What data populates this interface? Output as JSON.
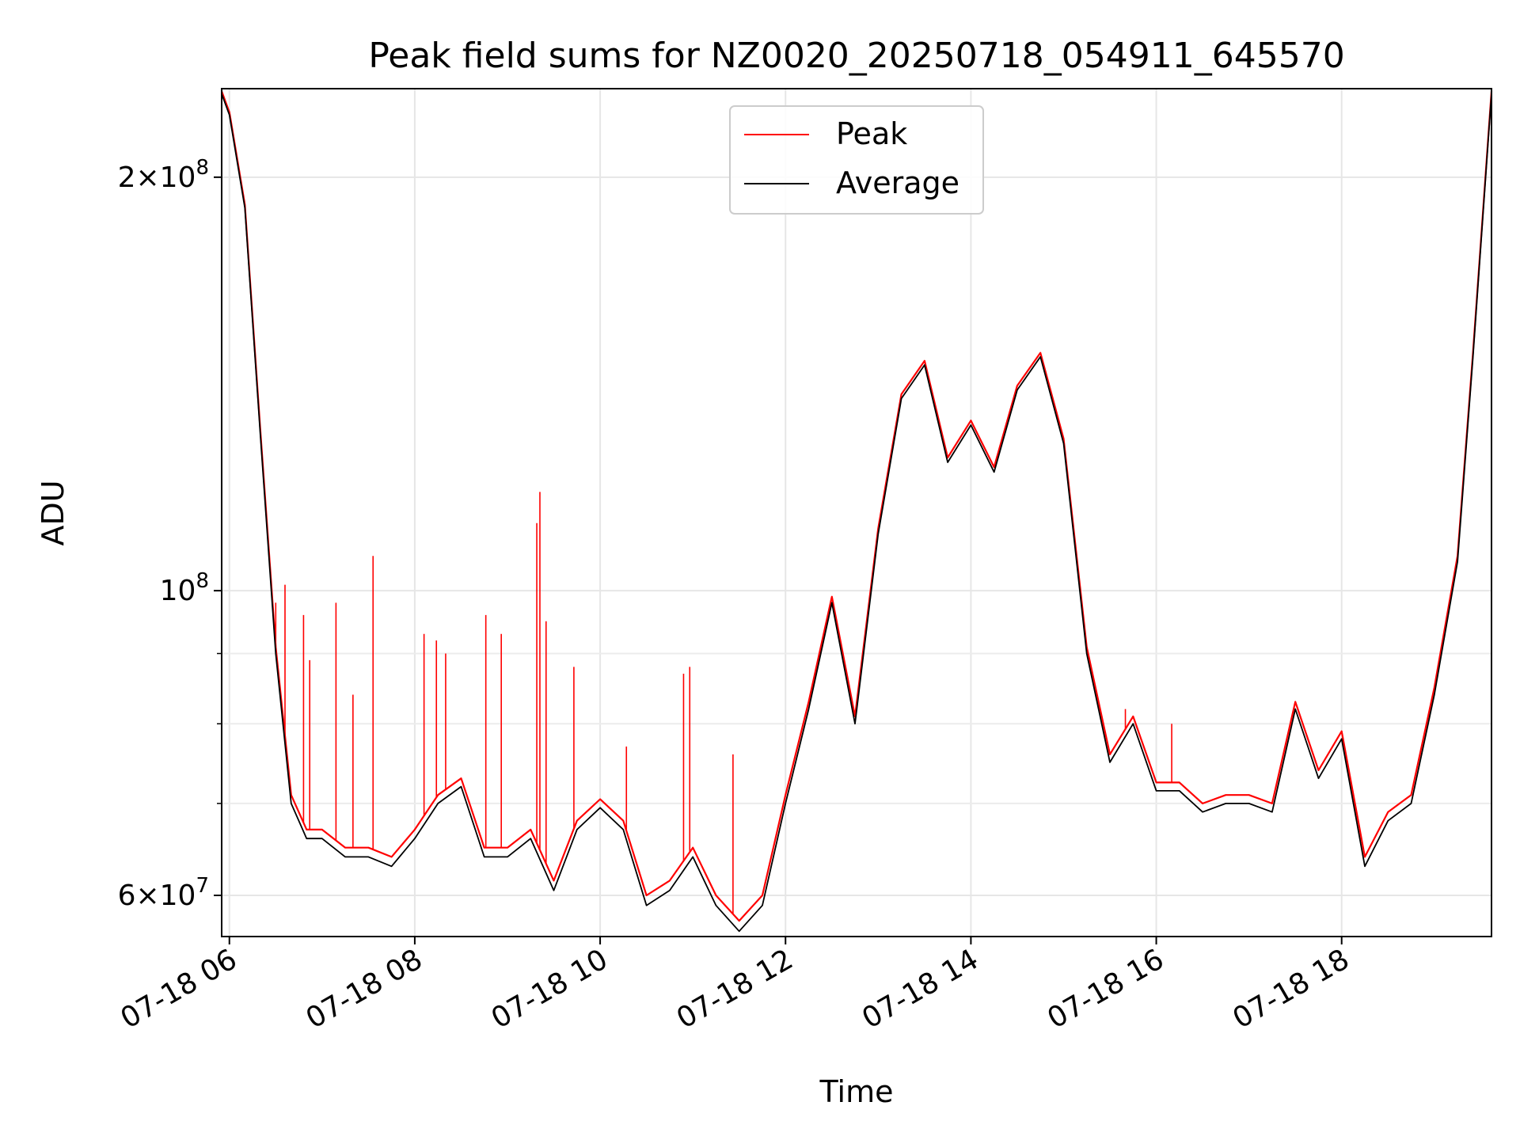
{
  "chart_data": {
    "type": "line",
    "title": "Peak field sums for NZ0020_20250718_054911_645570",
    "xlabel": "Time",
    "ylabel": "ADU",
    "yscale": "log",
    "ylim": [
      56000000,
      232000000
    ],
    "xlim": [
      "2025-07-18 05:55",
      "2025-07-18 19:37"
    ],
    "grid": true,
    "legend_position": "top-center",
    "x_ticks": [
      {
        "label": "07-18 06",
        "t": "2025-07-18 06:00"
      },
      {
        "label": "07-18 08",
        "t": "2025-07-18 08:00"
      },
      {
        "label": "07-18 10",
        "t": "2025-07-18 10:00"
      },
      {
        "label": "07-18 12",
        "t": "2025-07-18 12:00"
      },
      {
        "label": "07-18 14",
        "t": "2025-07-18 14:00"
      },
      {
        "label": "07-18 16",
        "t": "2025-07-18 16:00"
      },
      {
        "label": "07-18 18",
        "t": "2025-07-18 18:00"
      }
    ],
    "y_ticks": [
      {
        "label": "2×10⁸",
        "mant": "2",
        "exp": "8",
        "value": 200000000
      },
      {
        "label": "10⁸",
        "mant": "",
        "exp": "8",
        "value": 100000000
      },
      {
        "label": "6×10⁷",
        "mant": "6",
        "exp": "7",
        "value": 60000000
      }
    ],
    "y_minor_ticks": [
      70000000,
      80000000,
      90000000
    ],
    "x": [
      "2025-07-18 05:55",
      "2025-07-18 06:00",
      "2025-07-18 06:10",
      "2025-07-18 06:20",
      "2025-07-18 06:30",
      "2025-07-18 06:40",
      "2025-07-18 06:50",
      "2025-07-18 07:00",
      "2025-07-18 07:15",
      "2025-07-18 07:30",
      "2025-07-18 07:45",
      "2025-07-18 08:00",
      "2025-07-18 08:15",
      "2025-07-18 08:30",
      "2025-07-18 08:45",
      "2025-07-18 09:00",
      "2025-07-18 09:15",
      "2025-07-18 09:30",
      "2025-07-18 09:45",
      "2025-07-18 10:00",
      "2025-07-18 10:15",
      "2025-07-18 10:30",
      "2025-07-18 10:45",
      "2025-07-18 11:00",
      "2025-07-18 11:15",
      "2025-07-18 11:30",
      "2025-07-18 11:45",
      "2025-07-18 12:00",
      "2025-07-18 12:15",
      "2025-07-18 12:30",
      "2025-07-18 12:45",
      "2025-07-18 13:00",
      "2025-07-18 13:15",
      "2025-07-18 13:30",
      "2025-07-18 13:45",
      "2025-07-18 14:00",
      "2025-07-18 14:15",
      "2025-07-18 14:30",
      "2025-07-18 14:45",
      "2025-07-18 15:00",
      "2025-07-18 15:15",
      "2025-07-18 15:30",
      "2025-07-18 15:45",
      "2025-07-18 16:00",
      "2025-07-18 16:15",
      "2025-07-18 16:30",
      "2025-07-18 16:45",
      "2025-07-18 17:00",
      "2025-07-18 17:15",
      "2025-07-18 17:30",
      "2025-07-18 17:45",
      "2025-07-18 18:00",
      "2025-07-18 18:15",
      "2025-07-18 18:30",
      "2025-07-18 18:45",
      "2025-07-18 19:00",
      "2025-07-18 19:15",
      "2025-07-18 19:25",
      "2025-07-18 19:37"
    ],
    "series": [
      {
        "name": "Average",
        "color": "#000000",
        "values": [
          230000000,
          222000000,
          190000000,
          130000000,
          90000000,
          70000000,
          66000000,
          66000000,
          64000000,
          64000000,
          63000000,
          66000000,
          70000000,
          72000000,
          64000000,
          64000000,
          66000000,
          60500000,
          67000000,
          69500000,
          67000000,
          59000000,
          60500000,
          64000000,
          59000000,
          56500000,
          59000000,
          70000000,
          82000000,
          98000000,
          80000000,
          110000000,
          138000000,
          146000000,
          124000000,
          132000000,
          122000000,
          140000000,
          148000000,
          128000000,
          90000000,
          75000000,
          80000000,
          71500000,
          71500000,
          69000000,
          70000000,
          70000000,
          69000000,
          82000000,
          73000000,
          78000000,
          63000000,
          68000000,
          70000000,
          84000000,
          105000000,
          148000000,
          230000000
        ]
      },
      {
        "name": "Peak",
        "color": "#ff0000",
        "values": [
          231000000,
          223000000,
          191000000,
          131000000,
          91000000,
          71000000,
          67000000,
          67000000,
          65000000,
          65000000,
          64000000,
          67000000,
          71000000,
          73000000,
          65000000,
          65000000,
          67000000,
          61500000,
          68000000,
          70500000,
          68000000,
          60000000,
          61500000,
          65000000,
          60000000,
          57500000,
          60000000,
          71000000,
          83000000,
          99000000,
          81000000,
          111000000,
          139000000,
          147000000,
          125000000,
          133000000,
          123000000,
          141000000,
          149000000,
          129000000,
          91000000,
          76000000,
          81000000,
          72500000,
          72500000,
          70000000,
          71000000,
          71000000,
          70000000,
          83000000,
          74000000,
          79000000,
          64000000,
          69000000,
          71000000,
          85000000,
          106000000,
          149000000,
          231000000
        ],
        "spikes": [
          {
            "t": "2025-07-18 06:30",
            "value": 98000000
          },
          {
            "t": "2025-07-18 06:36",
            "value": 101000000
          },
          {
            "t": "2025-07-18 06:48",
            "value": 96000000
          },
          {
            "t": "2025-07-18 06:52",
            "value": 89000000
          },
          {
            "t": "2025-07-18 07:09",
            "value": 98000000
          },
          {
            "t": "2025-07-18 07:33",
            "value": 106000000
          },
          {
            "t": "2025-07-18 07:20",
            "value": 84000000
          },
          {
            "t": "2025-07-18 08:06",
            "value": 93000000
          },
          {
            "t": "2025-07-18 08:14",
            "value": 92000000
          },
          {
            "t": "2025-07-18 08:20",
            "value": 90000000
          },
          {
            "t": "2025-07-18 08:46",
            "value": 96000000
          },
          {
            "t": "2025-07-18 08:56",
            "value": 93000000
          },
          {
            "t": "2025-07-18 09:19",
            "value": 112000000
          },
          {
            "t": "2025-07-18 09:21",
            "value": 118000000
          },
          {
            "t": "2025-07-18 09:25",
            "value": 95000000
          },
          {
            "t": "2025-07-18 09:43",
            "value": 88000000
          },
          {
            "t": "2025-07-18 10:17",
            "value": 77000000
          },
          {
            "t": "2025-07-18 10:54",
            "value": 87000000
          },
          {
            "t": "2025-07-18 10:58",
            "value": 88000000
          },
          {
            "t": "2025-07-18 11:26",
            "value": 76000000
          },
          {
            "t": "2025-07-18 15:40",
            "value": 82000000
          },
          {
            "t": "2025-07-18 16:10",
            "value": 80000000
          }
        ]
      }
    ]
  }
}
